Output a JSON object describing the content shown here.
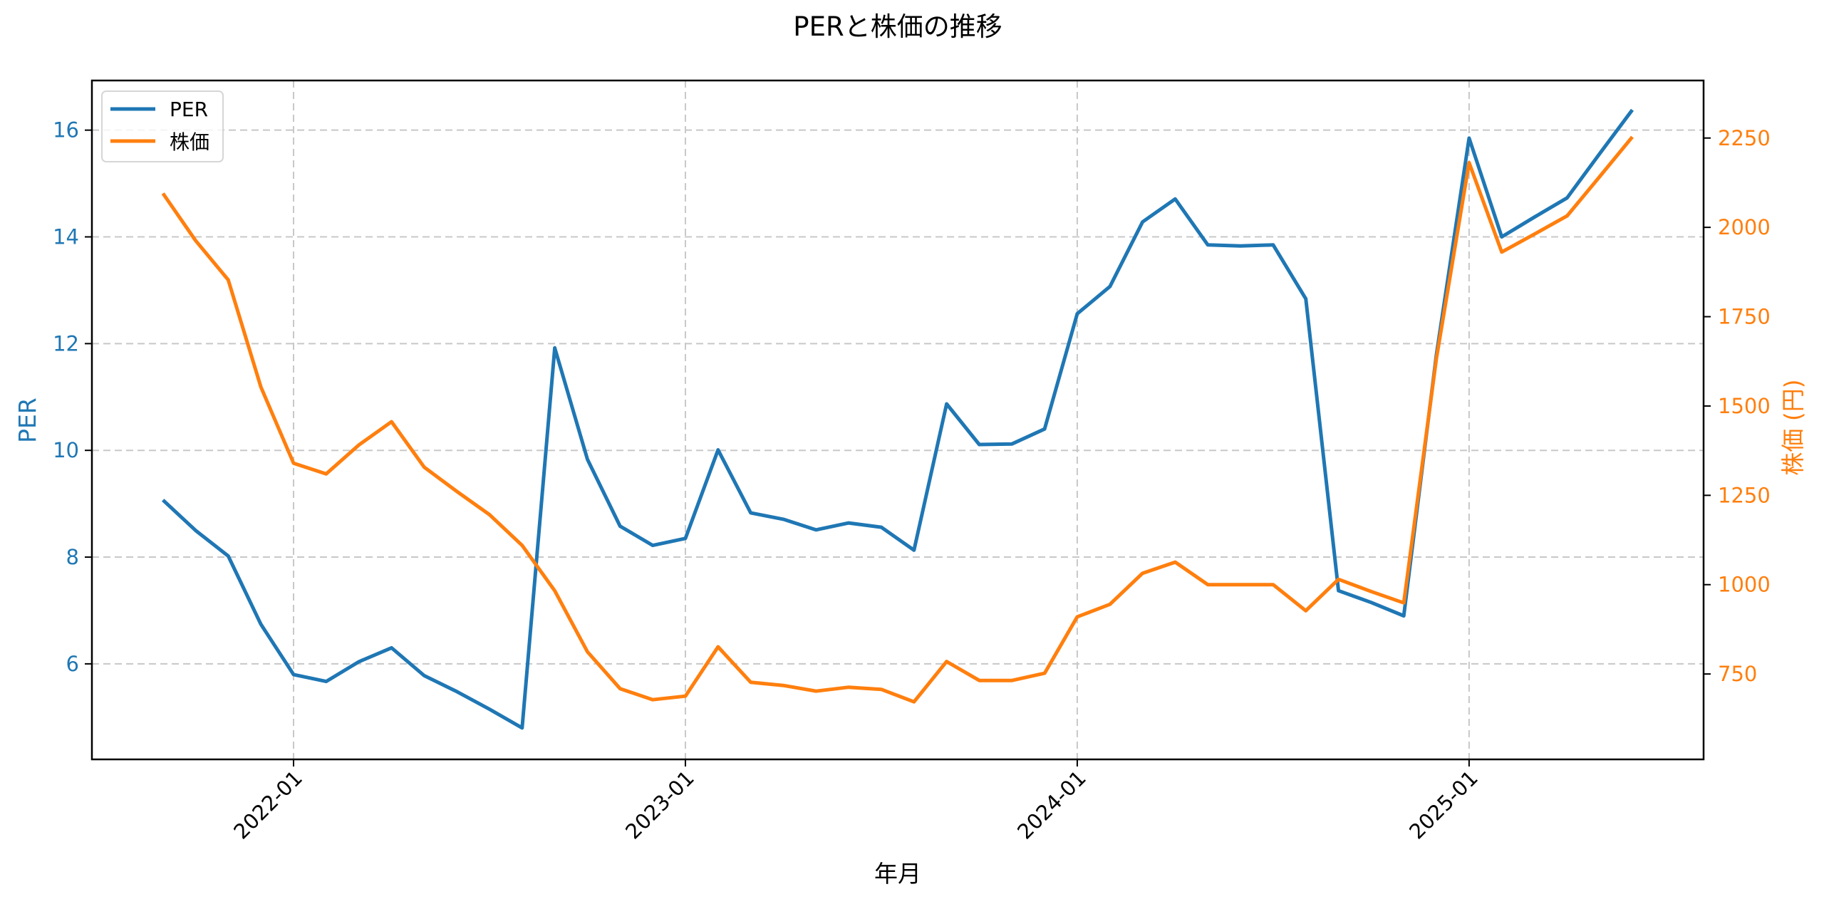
{
  "chart_data": {
    "type": "line",
    "title": "PERと株価の推移",
    "xlabel": "年月",
    "ylabel": "PER",
    "ylabel_right": "株価 (円)",
    "x_tick_labels": [
      "2022-01",
      "2023-01",
      "2024-01",
      "2025-01"
    ],
    "y_ticks_left": [
      6,
      8,
      10,
      12,
      14,
      16
    ],
    "y_ticks_right": [
      750,
      1000,
      1250,
      1500,
      1750,
      2000,
      2250
    ],
    "ylim_left": [
      4.21,
      16.93
    ],
    "ylim_right": [
      511,
      2411
    ],
    "grid": true,
    "legend_position": "upper left",
    "x": [
      "2021-09",
      "2021-10",
      "2021-11",
      "2021-12",
      "2022-01",
      "2022-02",
      "2022-03",
      "2022-04",
      "2022-05",
      "2022-06",
      "2022-07",
      "2022-08",
      "2022-09",
      "2022-10",
      "2022-11",
      "2022-12",
      "2023-01",
      "2023-02",
      "2023-03",
      "2023-04",
      "2023-05",
      "2023-06",
      "2023-07",
      "2023-08",
      "2023-09",
      "2023-10",
      "2023-11",
      "2023-12",
      "2024-01",
      "2024-02",
      "2024-03",
      "2024-04",
      "2024-05",
      "2024-06",
      "2024-07",
      "2024-08",
      "2024-09",
      "2024-10",
      "2024-11",
      "2024-12",
      "2025-01",
      "2025-02",
      "2025-03",
      "2025-04",
      "2025-05",
      "2025-06"
    ],
    "series": [
      {
        "name": "PER",
        "axis": "left",
        "color": "#1f77b4",
        "values": [
          9.07,
          8.5,
          8.02,
          6.74,
          5.8,
          5.67,
          6.04,
          6.3,
          5.78,
          5.48,
          5.15,
          4.8,
          11.92,
          9.83,
          8.58,
          8.22,
          8.35,
          10.01,
          8.83,
          8.71,
          8.51,
          8.64,
          8.56,
          8.13,
          10.87,
          10.11,
          10.12,
          10.4,
          12.56,
          13.07,
          14.28,
          14.71,
          13.85,
          13.83,
          13.85,
          12.84,
          7.37,
          7.15,
          6.9,
          11.79,
          15.85,
          14.0,
          14.37,
          14.73,
          15.56,
          16.38
        ]
      },
      {
        "name": "株価",
        "axis": "right",
        "color": "#ff7f0e",
        "values": [
          2095,
          1963,
          1853,
          1553,
          1340,
          1310,
          1391,
          1456,
          1329,
          1261,
          1196,
          1110,
          983,
          812,
          709,
          678,
          688,
          826,
          727,
          718,
          702,
          713,
          707,
          672,
          785,
          732,
          732,
          752,
          910,
          945,
          1032,
          1063,
          1000,
          1000,
          1000,
          927,
          1015,
          981,
          949,
          1633,
          2181,
          1931,
          1981,
          2032,
          2142,
          2253
        ]
      }
    ]
  },
  "legend": {
    "items": [
      {
        "label": "PER",
        "color": "#1f77b4"
      },
      {
        "label": "株価",
        "color": "#ff7f0e"
      }
    ]
  },
  "colors": {
    "per": "#1f77b4",
    "price": "#ff7f0e",
    "grid": "#c8c8c8",
    "axis": "#000000"
  }
}
